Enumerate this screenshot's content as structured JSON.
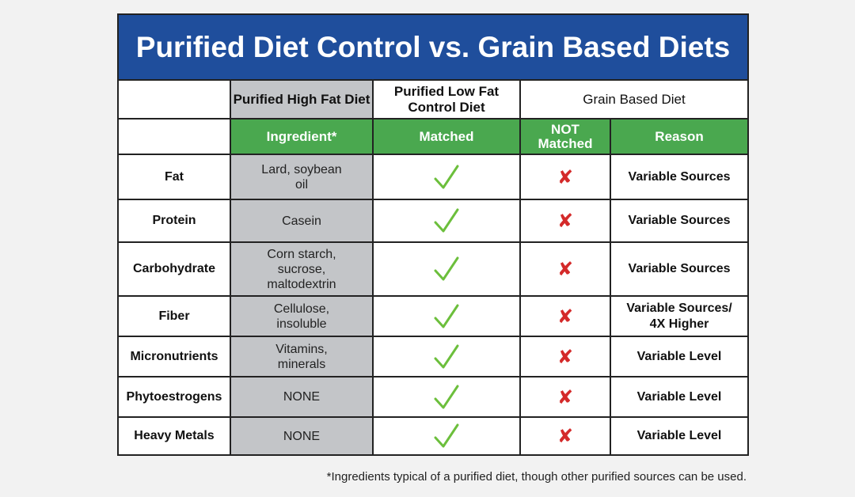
{
  "title": "Purified Diet Control vs. Grain Based Diets",
  "columns": {
    "high_fat": "Purified High Fat Diet",
    "low_fat": "Purified Low Fat Control Diet",
    "grain": "Grain Based Diet",
    "ingredient": "Ingredient*",
    "matched": "Matched",
    "not_matched": "NOT Matched",
    "reason": "Reason"
  },
  "rows": [
    {
      "label": "Fat",
      "ingredient": "Lard, soybean oil",
      "reason": "Variable Sources"
    },
    {
      "label": "Protein",
      "ingredient": "Casein",
      "reason": "Variable Sources"
    },
    {
      "label": "Carbohydrate",
      "ingredient": "Corn starch, sucrose, maltodextrin",
      "reason": "Variable Sources"
    },
    {
      "label": "Fiber",
      "ingredient": "Cellulose, insoluble",
      "reason": "Variable Sources/ 4X Higher"
    },
    {
      "label": "Micronutrients",
      "ingredient": "Vitamins, minerals",
      "reason": "Variable Level"
    },
    {
      "label": "Phytoestrogens",
      "ingredient": "NONE",
      "reason": "Variable Level"
    },
    {
      "label": "Heavy Metals",
      "ingredient": "NONE",
      "reason": "Variable Level"
    }
  ],
  "icons": {
    "matched": "check-icon",
    "not_matched": "x-icon"
  },
  "colors": {
    "title_bg": "#1f4e9c",
    "subheader_bg": "#4aa84f",
    "ingredient_bg": "#c3c5c8",
    "check": "#6cbf3c",
    "x": "#d42a2a"
  },
  "footnote": "*Ingredients typical of a purified diet, though other purified sources can be used."
}
